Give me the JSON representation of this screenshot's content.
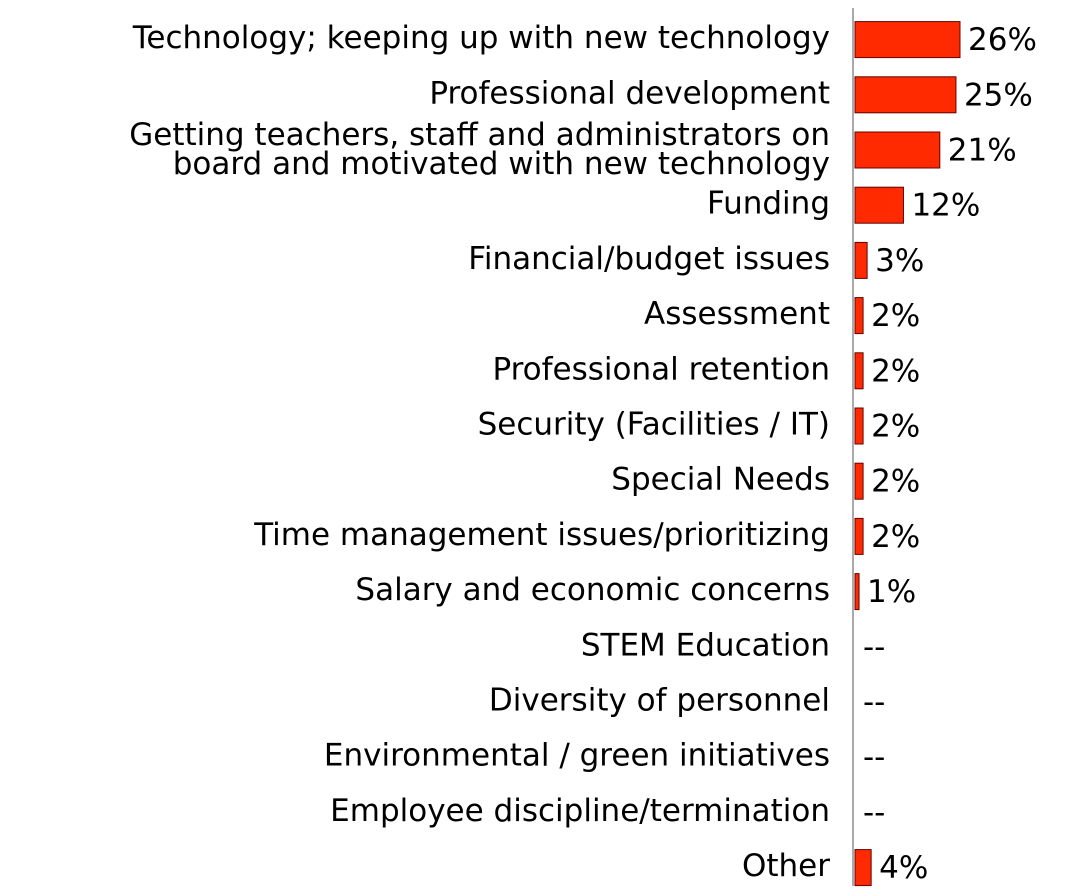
{
  "chart_data": {
    "type": "bar",
    "orientation": "horizontal",
    "categories": [
      "Technology; keeping up with new technology",
      "Professional development",
      "Getting teachers, staff and administrators on\nboard and motivated with new technology",
      "Funding",
      "Financial/budget issues",
      "Assessment",
      "Professional retention",
      "Security (Facilities / IT)",
      "Special Needs",
      "Time management issues/prioritizing",
      "Salary and economic concerns",
      "STEM Education",
      "Diversity of personnel",
      "Environmental / green initiatives",
      "Employee discipline/termination",
      "Other"
    ],
    "values": [
      26,
      25,
      21,
      12,
      3,
      2,
      2,
      2,
      2,
      2,
      1,
      null,
      null,
      null,
      null,
      4
    ],
    "value_labels": [
      "26%",
      "25%",
      "21%",
      "12%",
      "3%",
      "2%",
      "2%",
      "2%",
      "2%",
      "2%",
      "1%",
      "--",
      "--",
      "--",
      "--",
      "4%"
    ],
    "color": "#ff2a00",
    "xlim": [
      0,
      26
    ]
  }
}
